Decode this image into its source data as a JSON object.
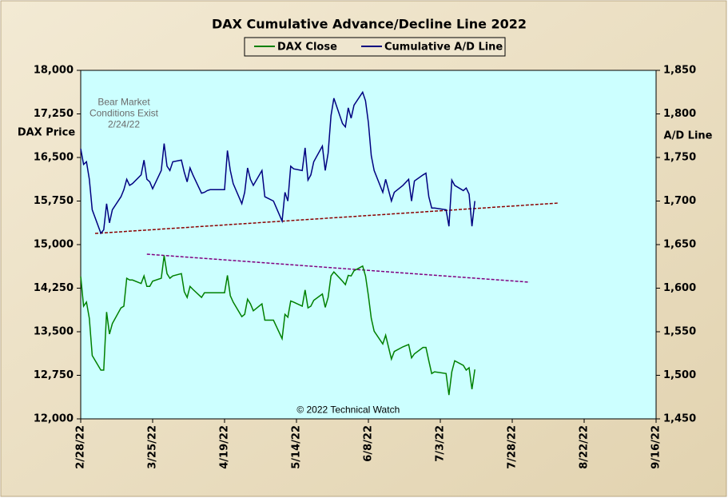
{
  "chart_data": {
    "type": "line",
    "title": "DAX Cumulative  Advance/Decline  Line  2022",
    "y_label": "DAX Price",
    "y2_label": "A/D Line",
    "x": [
      "2/28/22",
      "3/1/22",
      "3/2/22",
      "3/3/22",
      "3/4/22",
      "3/7/22",
      "3/8/22",
      "3/9/22",
      "3/10/22",
      "3/11/22",
      "3/14/22",
      "3/15/22",
      "3/16/22",
      "3/17/22",
      "3/18/22",
      "3/21/22",
      "3/22/22",
      "3/23/22",
      "3/24/22",
      "3/25/22",
      "3/28/22",
      "3/29/22",
      "3/30/22",
      "3/31/22",
      "4/1/22",
      "4/4/22",
      "4/5/22",
      "4/6/22",
      "4/7/22",
      "4/8/22",
      "4/11/22",
      "4/12/22",
      "4/13/22",
      "4/14/22",
      "4/19/22",
      "4/20/22",
      "4/21/22",
      "4/22/22",
      "4/25/22",
      "4/26/22",
      "4/27/22",
      "4/28/22",
      "4/29/22",
      "5/2/22",
      "5/3/22",
      "5/6/22",
      "5/9/22",
      "5/10/22",
      "5/11/22",
      "5/12/22",
      "5/13/22",
      "5/16/22",
      "5/17/22",
      "5/18/22",
      "5/19/22",
      "5/20/22",
      "5/23/22",
      "5/24/22",
      "5/25/22",
      "5/26/22",
      "5/27/22",
      "5/30/22",
      "5/31/22",
      "6/1/22",
      "6/2/22",
      "6/3/22",
      "6/6/22",
      "6/7/22",
      "6/8/22",
      "6/9/22",
      "6/10/22",
      "6/13/22",
      "6/14/22",
      "6/16/22",
      "6/17/22",
      "6/20/22",
      "6/22/22",
      "6/23/22",
      "6/24/22",
      "6/27/22",
      "6/28/22",
      "6/29/22",
      "6/30/22",
      "7/1/22",
      "7/5/22",
      "7/6/22",
      "7/7/22",
      "7/8/22",
      "7/11/22",
      "7/12/22",
      "7/13/22",
      "7/14/22",
      "7/15/22"
    ],
    "series": [
      {
        "name": "DAX Close",
        "color": "#008000",
        "axis": "y",
        "values": [
          14450,
          13940,
          14010,
          13730,
          13090,
          12840,
          12840,
          13840,
          13460,
          13640,
          13910,
          13940,
          14420,
          14390,
          14390,
          14330,
          14460,
          14280,
          14280,
          14370,
          14420,
          14810,
          14500,
          14420,
          14460,
          14500,
          14190,
          14090,
          14280,
          14230,
          14090,
          14170,
          14170,
          14170,
          14170,
          14470,
          14120,
          14010,
          13760,
          13800,
          14060,
          13980,
          13860,
          13980,
          13700,
          13700,
          13380,
          13800,
          13750,
          14030,
          14010,
          13940,
          14220,
          13910,
          13940,
          14040,
          14150,
          13920,
          14090,
          14460,
          14530,
          14370,
          14310,
          14470,
          14460,
          14550,
          14630,
          14460,
          14120,
          13730,
          13510,
          13290,
          13440,
          13030,
          13160,
          13240,
          13280,
          13050,
          13120,
          13230,
          13230,
          13000,
          12780,
          12810,
          12780,
          12410,
          12810,
          13000,
          12920,
          12840,
          12880,
          12510,
          12850
        ]
      },
      {
        "name": "Cumulative A/D Line",
        "color": "#000080",
        "axis": "y2",
        "values": [
          1760,
          1742,
          1745,
          1725,
          1690,
          1663,
          1667,
          1697,
          1675,
          1690,
          1705,
          1713,
          1725,
          1718,
          1720,
          1730,
          1747,
          1725,
          1722,
          1714,
          1735,
          1766,
          1740,
          1735,
          1745,
          1747,
          1733,
          1722,
          1738,
          1730,
          1709,
          1710,
          1712,
          1713,
          1713,
          1758,
          1735,
          1720,
          1697,
          1710,
          1738,
          1725,
          1718,
          1735,
          1705,
          1700,
          1677,
          1710,
          1700,
          1740,
          1737,
          1735,
          1761,
          1724,
          1730,
          1745,
          1763,
          1735,
          1755,
          1798,
          1818,
          1789,
          1785,
          1807,
          1795,
          1810,
          1825,
          1815,
          1790,
          1752,
          1735,
          1710,
          1725,
          1700,
          1710,
          1718,
          1725,
          1700,
          1723,
          1730,
          1732,
          1705,
          1692,
          1692,
          1690,
          1671,
          1724,
          1718,
          1712,
          1715,
          1708,
          1671,
          1700
        ]
      }
    ],
    "trend_lines": [
      {
        "x": [
          "3/5/22",
          "8/13/22"
        ],
        "values": [
          1662.8,
          1697.7
        ],
        "axis": "y2",
        "color": "#8b0000"
      },
      {
        "x": [
          "3/23/22",
          "8/3/22"
        ],
        "values": [
          14835,
          14353
        ],
        "axis": "y",
        "color": "#800080"
      }
    ],
    "annotations": [
      {
        "text": [
          "Bear Market",
          "Conditions  Exist",
          "2/24/22"
        ],
        "x": "3/15/22",
        "y": 17250
      },
      {
        "text": [
          "© 2022 Technical  Watch"
        ],
        "x": "6/1/22",
        "y": 12150
      }
    ],
    "xlim": [
      "2/28/22",
      "9/16/22"
    ],
    "xticks": [
      "2/28/22",
      "3/25/22",
      "4/19/22",
      "5/14/22",
      "6/8/22",
      "7/3/22",
      "7/28/22",
      "8/22/22",
      "9/16/22"
    ],
    "ylim": [
      12000,
      18000
    ],
    "yticks": [
      {
        "value": 12000,
        "label": "12,000"
      },
      {
        "value": 12750,
        "label": "12,750"
      },
      {
        "value": 13500,
        "label": "13,500"
      },
      {
        "value": 14250,
        "label": "14,250"
      },
      {
        "value": 15000,
        "label": "15,000"
      },
      {
        "value": 15750,
        "label": "15,750"
      },
      {
        "value": 16500,
        "label": "16,500"
      },
      {
        "value": 17250,
        "label": "17,250"
      },
      {
        "value": 18000,
        "label": "18,000"
      }
    ],
    "y2lim": [
      1450,
      1850
    ],
    "y2ticks": [
      {
        "value": 1450,
        "label": "1,450"
      },
      {
        "value": 1500,
        "label": "1,500"
      },
      {
        "value": 1550,
        "label": "1,550"
      },
      {
        "value": 1600,
        "label": "1,600"
      },
      {
        "value": 1650,
        "label": "1,650"
      },
      {
        "value": 1700,
        "label": "1,700"
      },
      {
        "value": 1750,
        "label": "1,750"
      },
      {
        "value": 1800,
        "label": "1,800"
      },
      {
        "value": 1850,
        "label": "1,850"
      }
    ],
    "legend": "top",
    "plot_background": "#ccffff"
  }
}
